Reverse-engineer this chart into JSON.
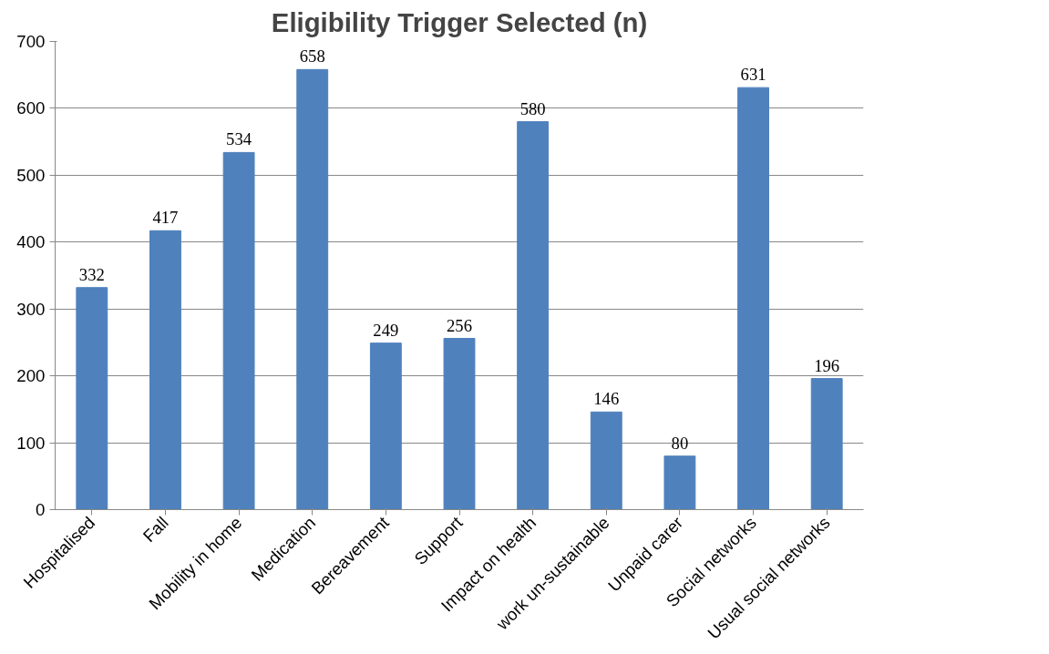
{
  "chart_data": {
    "type": "bar",
    "title": "Eligibility Trigger Selected (n)",
    "categories": [
      "Hospitalised",
      "Fall",
      "Mobility in home",
      "Medication",
      "Bereavement",
      "Support",
      "Impact on health",
      "work un-sustainable",
      "Unpaid carer",
      "Social networks",
      "Usual social networks"
    ],
    "values": [
      332,
      417,
      534,
      658,
      249,
      256,
      580,
      146,
      80,
      631,
      196
    ],
    "color": "#4f81bd",
    "ylim": [
      0,
      700
    ],
    "yticks": [
      0,
      100,
      200,
      300,
      400,
      500,
      600,
      700
    ],
    "grid": "y",
    "data_labels": true
  }
}
